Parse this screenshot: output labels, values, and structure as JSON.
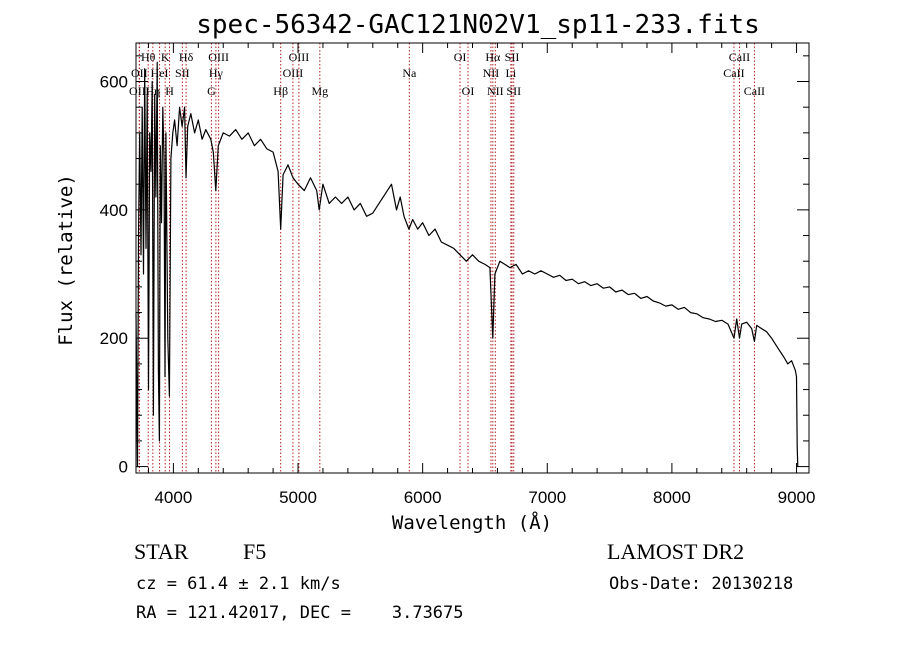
{
  "chart_data": {
    "type": "line",
    "title": "spec-56342-GAC121N02V1_sp11-233.fits",
    "xlabel": "Wavelength (Å)",
    "ylabel": "Flux (relative)",
    "xlim": [
      3700,
      9100
    ],
    "ylim": [
      -10,
      660
    ],
    "xticks": [
      4000,
      5000,
      6000,
      7000,
      8000,
      9000
    ],
    "yticks": [
      0,
      200,
      400,
      600
    ],
    "x_minor_step": 200,
    "y_minor_step": 40,
    "spectrum_points": [
      [
        3700,
        240
      ],
      [
        3712,
        0
      ],
      [
        3720,
        360
      ],
      [
        3730,
        520
      ],
      [
        3740,
        330
      ],
      [
        3750,
        560
      ],
      [
        3760,
        300
      ],
      [
        3770,
        620
      ],
      [
        3780,
        340
      ],
      [
        3790,
        580
      ],
      [
        3800,
        120
      ],
      [
        3810,
        520
      ],
      [
        3820,
        460
      ],
      [
        3830,
        600
      ],
      [
        3840,
        80
      ],
      [
        3850,
        580
      ],
      [
        3860,
        420
      ],
      [
        3870,
        630
      ],
      [
        3880,
        150
      ],
      [
        3888,
        40
      ],
      [
        3895,
        500
      ],
      [
        3905,
        380
      ],
      [
        3915,
        560
      ],
      [
        3925,
        480
      ],
      [
        3933,
        140
      ],
      [
        3940,
        520
      ],
      [
        3955,
        200
      ],
      [
        3968,
        110
      ],
      [
        3980,
        480
      ],
      [
        3995,
        520
      ],
      [
        4010,
        540
      ],
      [
        4030,
        500
      ],
      [
        4050,
        560
      ],
      [
        4070,
        530
      ],
      [
        4090,
        560
      ],
      [
        4101,
        450
      ],
      [
        4115,
        530
      ],
      [
        4140,
        550
      ],
      [
        4170,
        520
      ],
      [
        4200,
        540
      ],
      [
        4230,
        510
      ],
      [
        4260,
        525
      ],
      [
        4300,
        510
      ],
      [
        4320,
        490
      ],
      [
        4340,
        430
      ],
      [
        4360,
        500
      ],
      [
        4400,
        520
      ],
      [
        4450,
        515
      ],
      [
        4500,
        525
      ],
      [
        4550,
        510
      ],
      [
        4600,
        520
      ],
      [
        4650,
        500
      ],
      [
        4700,
        510
      ],
      [
        4750,
        495
      ],
      [
        4800,
        490
      ],
      [
        4840,
        460
      ],
      [
        4861,
        370
      ],
      [
        4880,
        455
      ],
      [
        4920,
        470
      ],
      [
        4960,
        450
      ],
      [
        5000,
        440
      ],
      [
        5050,
        430
      ],
      [
        5100,
        450
      ],
      [
        5150,
        430
      ],
      [
        5170,
        400
      ],
      [
        5200,
        440
      ],
      [
        5250,
        410
      ],
      [
        5300,
        420
      ],
      [
        5350,
        410
      ],
      [
        5400,
        420
      ],
      [
        5450,
        400
      ],
      [
        5500,
        410
      ],
      [
        5550,
        390
      ],
      [
        5600,
        395
      ],
      [
        5650,
        410
      ],
      [
        5700,
        425
      ],
      [
        5750,
        440
      ],
      [
        5790,
        400
      ],
      [
        5820,
        420
      ],
      [
        5850,
        390
      ],
      [
        5890,
        370
      ],
      [
        5920,
        385
      ],
      [
        5960,
        370
      ],
      [
        6000,
        380
      ],
      [
        6050,
        360
      ],
      [
        6100,
        370
      ],
      [
        6150,
        350
      ],
      [
        6200,
        345
      ],
      [
        6250,
        340
      ],
      [
        6300,
        330
      ],
      [
        6350,
        320
      ],
      [
        6400,
        330
      ],
      [
        6450,
        320
      ],
      [
        6500,
        315
      ],
      [
        6540,
        310
      ],
      [
        6563,
        200
      ],
      [
        6580,
        300
      ],
      [
        6620,
        320
      ],
      [
        6660,
        315
      ],
      [
        6700,
        310
      ],
      [
        6750,
        315
      ],
      [
        6800,
        300
      ],
      [
        6850,
        305
      ],
      [
        6900,
        300
      ],
      [
        6950,
        305
      ],
      [
        7000,
        300
      ],
      [
        7050,
        295
      ],
      [
        7100,
        298
      ],
      [
        7150,
        290
      ],
      [
        7200,
        292
      ],
      [
        7250,
        285
      ],
      [
        7300,
        288
      ],
      [
        7350,
        282
      ],
      [
        7400,
        285
      ],
      [
        7450,
        278
      ],
      [
        7500,
        280
      ],
      [
        7550,
        272
      ],
      [
        7600,
        275
      ],
      [
        7650,
        268
      ],
      [
        7700,
        270
      ],
      [
        7750,
        262
      ],
      [
        7800,
        265
      ],
      [
        7850,
        258
      ],
      [
        7900,
        255
      ],
      [
        7950,
        250
      ],
      [
        8000,
        252
      ],
      [
        8050,
        245
      ],
      [
        8100,
        248
      ],
      [
        8150,
        240
      ],
      [
        8200,
        238
      ],
      [
        8250,
        232
      ],
      [
        8300,
        230
      ],
      [
        8350,
        226
      ],
      [
        8400,
        228
      ],
      [
        8450,
        222
      ],
      [
        8498,
        200
      ],
      [
        8520,
        230
      ],
      [
        8542,
        200
      ],
      [
        8560,
        222
      ],
      [
        8600,
        225
      ],
      [
        8640,
        215
      ],
      [
        8662,
        195
      ],
      [
        8680,
        220
      ],
      [
        8720,
        215
      ],
      [
        8760,
        210
      ],
      [
        8800,
        200
      ],
      [
        8850,
        185
      ],
      [
        8900,
        170
      ],
      [
        8930,
        160
      ],
      [
        8960,
        165
      ],
      [
        8990,
        150
      ],
      [
        9000,
        140
      ],
      [
        9005,
        30
      ],
      [
        9010,
        0
      ]
    ],
    "line_markers": [
      {
        "label": "Hθ",
        "x": 3798,
        "row": 1
      },
      {
        "label": "OII",
        "x": 3727,
        "row": 2
      },
      {
        "label": "OIII",
        "x": 3727,
        "row": 3
      },
      {
        "label": "Hη",
        "x": 3835,
        "row": 3
      },
      {
        "label": "HeI",
        "x": 3889,
        "row": 2
      },
      {
        "label": "K",
        "x": 3934,
        "row": 1
      },
      {
        "label": "H",
        "x": 3969,
        "row": 3
      },
      {
        "label": "SII",
        "x": 4072,
        "row": 2
      },
      {
        "label": "Hδ",
        "x": 4102,
        "row": 1
      },
      {
        "label": "OIII",
        "x": 4363,
        "row": 1
      },
      {
        "label": "Hγ",
        "x": 4341,
        "row": 2
      },
      {
        "label": "G",
        "x": 4305,
        "row": 3
      },
      {
        "label": "Hβ",
        "x": 4861,
        "row": 3
      },
      {
        "label": "OIII",
        "x": 5007,
        "row": 1
      },
      {
        "label": "OIII",
        "x": 4959,
        "row": 2
      },
      {
        "label": "Mg",
        "x": 5175,
        "row": 3
      },
      {
        "label": "Na",
        "x": 5893,
        "row": 2
      },
      {
        "label": "OI",
        "x": 6300,
        "row": 1
      },
      {
        "label": "OI",
        "x": 6364,
        "row": 3
      },
      {
        "label": "Hα",
        "x": 6563,
        "row": 1
      },
      {
        "label": "NII",
        "x": 6548,
        "row": 2
      },
      {
        "label": "NII",
        "x": 6583,
        "row": 3
      },
      {
        "label": "SII",
        "x": 6717,
        "row": 1
      },
      {
        "label": "Li",
        "x": 6708,
        "row": 2
      },
      {
        "label": "SII",
        "x": 6731,
        "row": 3
      },
      {
        "label": "CaII",
        "x": 8542,
        "row": 1
      },
      {
        "label": "CaII",
        "x": 8498,
        "row": 2
      },
      {
        "label": "CaII",
        "x": 8662,
        "row": 3
      }
    ]
  },
  "info": {
    "class_label": "STAR",
    "subclass_label": "F5",
    "survey_label": "LAMOST DR2",
    "cz_text": "cz = 61.4 ± 2.1 km/s",
    "obs_date_text": "Obs-Date: 20130218",
    "radec_text": "RA = 121.42017, DEC =    3.73675"
  }
}
